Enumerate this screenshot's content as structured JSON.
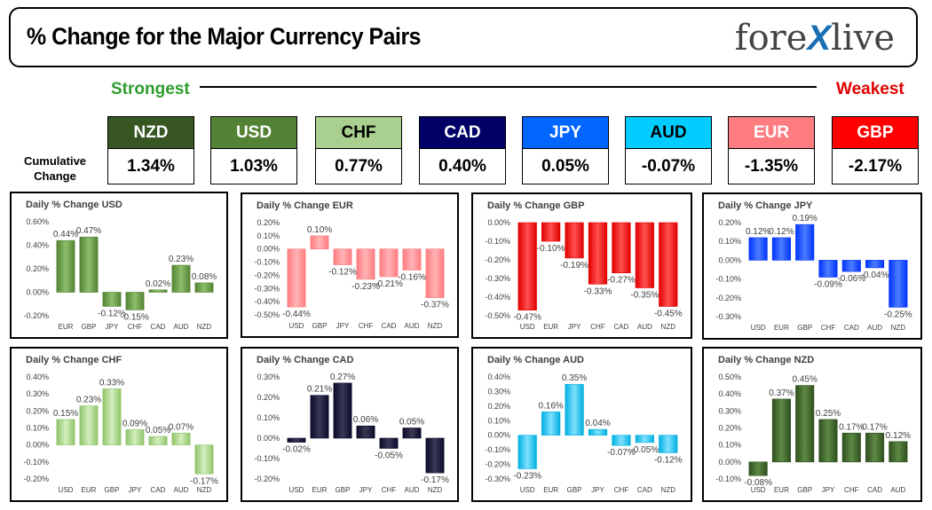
{
  "header": {
    "title": "% Change for the Major Currency Pairs",
    "logo_left": "fore",
    "logo_x": "X",
    "logo_right": "live"
  },
  "ranking": {
    "strongest_label": "Strongest",
    "weakest_label": "Weakest",
    "cumulative_label_line1": "Cumulative",
    "cumulative_label_line2": "Change",
    "currencies": [
      {
        "code": "NZD",
        "value": "1.34%",
        "bg": "#375623",
        "fg": "#ffffff"
      },
      {
        "code": "USD",
        "value": "1.03%",
        "bg": "#548235",
        "fg": "#ffffff"
      },
      {
        "code": "CHF",
        "value": "0.77%",
        "bg": "#a9d08e",
        "fg": "#000000"
      },
      {
        "code": "CAD",
        "value": "0.40%",
        "bg": "#000066",
        "fg": "#ffffff"
      },
      {
        "code": "JPY",
        "value": "0.05%",
        "bg": "#0066ff",
        "fg": "#ffffff"
      },
      {
        "code": "AUD",
        "value": "-0.07%",
        "bg": "#00ccff",
        "fg": "#000000"
      },
      {
        "code": "EUR",
        "value": "-1.35%",
        "bg": "#ff7c80",
        "fg": "#ffffff"
      },
      {
        "code": "GBP",
        "value": "-2.17%",
        "bg": "#ff0000",
        "fg": "#ffffff"
      }
    ]
  },
  "chart_data": [
    {
      "type": "bar",
      "title": "Daily % Change USD",
      "categories": [
        "EUR",
        "GBP",
        "JPY",
        "CHF",
        "CAD",
        "AUD",
        "NZD"
      ],
      "values": [
        0.44,
        0.47,
        -0.12,
        -0.15,
        0.02,
        0.23,
        0.08
      ],
      "value_labels": [
        "0.44%",
        "0.47%",
        "-0.12%",
        "-0.15%",
        "0.02%",
        "0.23%",
        "0.08%"
      ],
      "yticks": [
        "0.60%",
        "0.40%",
        "0.20%",
        "0.00%",
        "-0.20%"
      ],
      "ylim": [
        -0.2,
        0.6
      ],
      "color": "#548235",
      "grad": "#8cc06a"
    },
    {
      "type": "bar",
      "title": "Daily % Change EUR",
      "categories": [
        "USD",
        "GBP",
        "JPY",
        "CHF",
        "CAD",
        "AUD",
        "NZD"
      ],
      "values": [
        -0.44,
        0.1,
        -0.12,
        -0.23,
        -0.21,
        -0.16,
        -0.37
      ],
      "value_labels": [
        "-0.44%",
        "0.10%",
        "-0.12%",
        "-0.23%",
        "-0.21%",
        "-0.16%",
        "-0.37%"
      ],
      "yticks": [
        "0.20%",
        "0.10%",
        "0.00%",
        "-0.10%",
        "-0.20%",
        "-0.30%",
        "-0.40%",
        "-0.50%"
      ],
      "ylim": [
        -0.5,
        0.2
      ],
      "color": "#ff7c80",
      "grad": "#ffb3b5"
    },
    {
      "type": "bar",
      "title": "Daily % Change GBP",
      "categories": [
        "USD",
        "EUR",
        "JPY",
        "CHF",
        "CAD",
        "AUD",
        "NZD"
      ],
      "values": [
        -0.47,
        -0.1,
        -0.19,
        -0.33,
        -0.27,
        -0.35,
        -0.45
      ],
      "value_labels": [
        "-0.47%",
        "-0.10%",
        "-0.19%",
        "-0.33%",
        "-0.27%",
        "-0.35%",
        "-0.45%"
      ],
      "yticks": [
        "0.00%",
        "-0.10%",
        "-0.20%",
        "-0.30%",
        "-0.40%",
        "-0.50%"
      ],
      "ylim": [
        -0.5,
        0.0
      ],
      "color": "#e00000",
      "grad": "#ff5050"
    },
    {
      "type": "bar",
      "title": "Daily % Change JPY",
      "categories": [
        "USD",
        "EUR",
        "GBP",
        "CHF",
        "CAD",
        "AUD",
        "NZD"
      ],
      "values": [
        0.12,
        0.12,
        0.19,
        -0.09,
        -0.06,
        -0.04,
        -0.25
      ],
      "value_labels": [
        "0.12%",
        "0.12%",
        "0.19%",
        "-0.09%",
        "-0.06%",
        "-0.04%",
        "-0.25%"
      ],
      "yticks": [
        "0.20%",
        "0.10%",
        "0.00%",
        "-0.10%",
        "-0.20%",
        "-0.30%"
      ],
      "ylim": [
        -0.3,
        0.2
      ],
      "color": "#0033ff",
      "grad": "#4d7dff"
    },
    {
      "type": "bar",
      "title": "Daily % Change CHF",
      "categories": [
        "USD",
        "EUR",
        "GBP",
        "JPY",
        "CAD",
        "AUD",
        "NZD"
      ],
      "values": [
        0.15,
        0.23,
        0.33,
        0.09,
        0.05,
        0.07,
        -0.17
      ],
      "value_labels": [
        "0.15%",
        "0.23%",
        "0.33%",
        "0.09%",
        "0.05%",
        "0.07%",
        "-0.17%"
      ],
      "yticks": [
        "0.40%",
        "0.30%",
        "0.20%",
        "0.10%",
        "0.00%",
        "-0.10%",
        "-0.20%"
      ],
      "ylim": [
        -0.2,
        0.4
      ],
      "color": "#8fc46a",
      "grad": "#d4efbf"
    },
    {
      "type": "bar",
      "title": "Daily % Change CAD",
      "categories": [
        "USD",
        "EUR",
        "GBP",
        "JPY",
        "CHF",
        "AUD",
        "NZD"
      ],
      "values": [
        -0.02,
        0.21,
        0.27,
        0.06,
        -0.05,
        0.05,
        -0.17
      ],
      "value_labels": [
        "-0.02%",
        "0.21%",
        "0.27%",
        "0.06%",
        "-0.05%",
        "0.05%",
        "-0.17%"
      ],
      "yticks": [
        "0.30%",
        "0.20%",
        "0.10%",
        "0.00%",
        "-0.10%",
        "-0.20%"
      ],
      "ylim": [
        -0.2,
        0.3
      ],
      "color": "#0a0a2a",
      "grad": "#3a3a55"
    },
    {
      "type": "bar",
      "title": "Daily % Change AUD",
      "categories": [
        "USD",
        "EUR",
        "GBP",
        "JPY",
        "CHF",
        "CAD",
        "NZD"
      ],
      "values": [
        -0.23,
        0.16,
        0.35,
        0.04,
        -0.07,
        -0.05,
        -0.12
      ],
      "value_labels": [
        "-0.23%",
        "0.16%",
        "0.35%",
        "0.04%",
        "-0.07%",
        "-0.05%",
        "-0.12%"
      ],
      "yticks": [
        "0.40%",
        "0.30%",
        "0.20%",
        "0.10%",
        "0.00%",
        "-0.10%",
        "-0.20%",
        "-0.30%"
      ],
      "ylim": [
        -0.3,
        0.4
      ],
      "color": "#00b0e0",
      "grad": "#7fe0ff"
    },
    {
      "type": "bar",
      "title": "Daily % Change NZD",
      "categories": [
        "USD",
        "EUR",
        "GBP",
        "JPY",
        "CHF",
        "CAD",
        "AUD"
      ],
      "values": [
        -0.08,
        0.37,
        0.45,
        0.25,
        0.17,
        0.17,
        0.12
      ],
      "value_labels": [
        "-0.08%",
        "0.37%",
        "0.45%",
        "0.25%",
        "0.17%",
        "0.17%",
        "0.12%"
      ],
      "yticks": [
        "0.50%",
        "0.40%",
        "0.30%",
        "0.20%",
        "0.10%",
        "0.00%",
        "-0.10%"
      ],
      "ylim": [
        -0.1,
        0.5
      ],
      "color": "#2f4f1f",
      "grad": "#5e8a44"
    }
  ]
}
